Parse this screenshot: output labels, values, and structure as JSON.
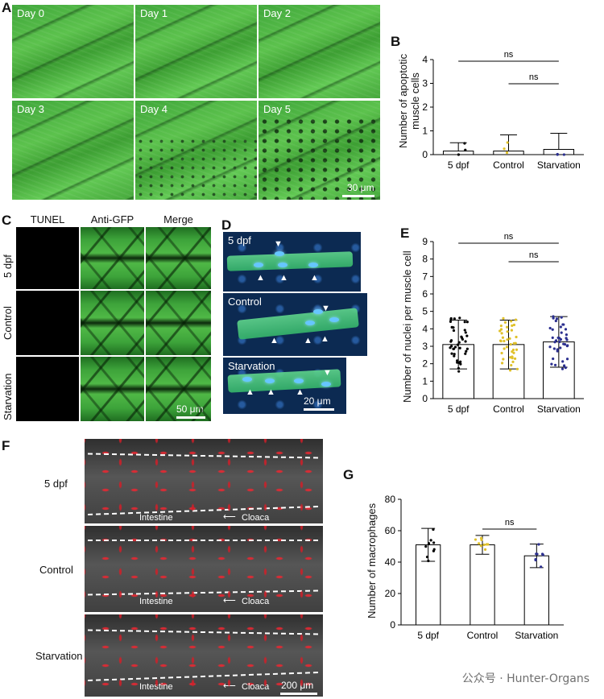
{
  "panel_letters": {
    "a": "A",
    "b": "B",
    "c": "C",
    "d": "D",
    "e": "E",
    "f": "F",
    "g": "G"
  },
  "panel_a": {
    "days": [
      "Day 0",
      "Day 1",
      "Day 2",
      "Day 3",
      "Day 4",
      "Day 5"
    ],
    "scale_bar": "30 μm"
  },
  "panel_c": {
    "columns": [
      "TUNEL",
      "Anti-GFP",
      "Merge"
    ],
    "rows": [
      "5 dpf",
      "Control",
      "Starvation"
    ],
    "scale_bar": "50 μm"
  },
  "panel_d": {
    "labels": [
      "5 dpf",
      "Control",
      "Starvation"
    ],
    "scale_bar": "20 μm"
  },
  "panel_f": {
    "rows": [
      "5 dpf",
      "Control",
      "Starvation"
    ],
    "intestine": "Intestine",
    "cloaca": "Cloaca",
    "scale_bar": "200 μm"
  },
  "chart_data": [
    {
      "id": "B",
      "type": "bar",
      "categories": [
        "5 dpf",
        "Control",
        "Starvation"
      ],
      "values": [
        0.15,
        0.15,
        0.22
      ],
      "sd": [
        0.35,
        0.68,
        0.68
      ],
      "ylabel": "Number of apoptotic muscle cells",
      "ylabel_lines": [
        "Number of apoptotic",
        "muscle cells"
      ],
      "ylim": [
        0,
        4
      ],
      "yticks": [
        "0",
        "1",
        "2",
        "3",
        "4"
      ],
      "significance": [
        {
          "from": "5 dpf",
          "to": "Starvation",
          "label": "ns"
        },
        {
          "from": "Control",
          "to": "Starvation",
          "label": "ns"
        }
      ],
      "colors": [
        "#000000",
        "#e0c12a",
        "#2b2f8f"
      ]
    },
    {
      "id": "E",
      "type": "bar",
      "categories": [
        "5 dpf",
        "Control",
        "Starvation"
      ],
      "values": [
        3.1,
        3.1,
        3.25
      ],
      "sd": [
        1.4,
        1.4,
        1.45
      ],
      "ylabel": "Number of nuclei per muscle cell",
      "ylim": [
        0,
        9
      ],
      "yticks": [
        "0",
        "1",
        "2",
        "3",
        "4",
        "5",
        "6",
        "7",
        "8",
        "9"
      ],
      "significance": [
        {
          "from": "5 dpf",
          "to": "Starvation",
          "label": "ns"
        },
        {
          "from": "Control",
          "to": "Starvation",
          "label": "ns"
        }
      ],
      "colors": [
        "#000000",
        "#e0c12a",
        "#2b2f8f"
      ]
    },
    {
      "id": "G",
      "type": "bar",
      "categories": [
        "5 dpf",
        "Control",
        "Starvation"
      ],
      "values": [
        51,
        51,
        44
      ],
      "sd": [
        10.5,
        6,
        7.5
      ],
      "ylabel": "Number of macrophages",
      "ylim": [
        0,
        80
      ],
      "yticks": [
        "0",
        "20",
        "40",
        "60",
        "80"
      ],
      "significance": [
        {
          "from": "Control",
          "to": "Starvation",
          "label": "ns"
        }
      ],
      "colors": [
        "#000000",
        "#e0c12a",
        "#2b2f8f"
      ]
    }
  ],
  "watermark": "公众号 · Hunter-Organs"
}
